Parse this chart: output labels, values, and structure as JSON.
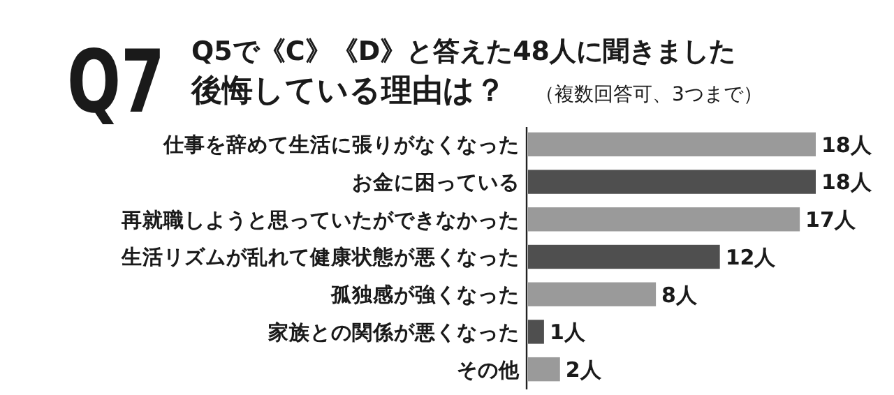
{
  "chart_data": {
    "type": "bar",
    "orientation": "horizontal",
    "title": "Q7",
    "subtitle": "Q5で《C》《D》と答えた48人に聞きました",
    "annotations": [
      "後悔している理由は？",
      "（複数回答可、3つまで）"
    ],
    "categories": [
      "仕事を辞めて生活に張りがなくなった",
      "お金に困っている",
      "再就職しようと思っていたができなかった",
      "生活リズムが乱れて健康状態が悪くなった",
      "孤独感が強くなった",
      "家族との関係が悪くなった",
      "その他"
    ],
    "values": [
      18,
      18,
      17,
      12,
      8,
      1,
      2
    ],
    "value_labels": [
      "18人",
      "18人",
      "17人",
      "12人",
      "8人",
      "1人",
      "2人"
    ],
    "colors": [
      "#9a9a9a",
      "#4f4f4f",
      "#9a9a9a",
      "#4f4f4f",
      "#9a9a9a",
      "#4f4f4f",
      "#9a9a9a"
    ],
    "xlim": [
      0,
      18
    ]
  }
}
